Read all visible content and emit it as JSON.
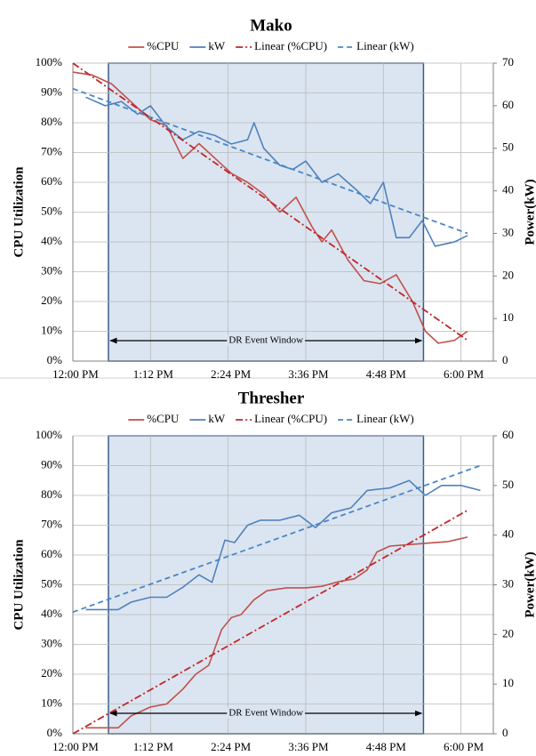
{
  "chart_data": [
    {
      "type": "line",
      "title": "Mako",
      "y_label": "CPU Utilization",
      "y2_label": "Power(kW)",
      "legend": "top",
      "grid": true,
      "xlim": [
        12,
        18.5
      ],
      "xticks": [
        {
          "value": 12,
          "label": "12:00 PM"
        },
        {
          "value": 13.2,
          "label": "1:12 PM"
        },
        {
          "value": 14.4,
          "label": "2:24 PM"
        },
        {
          "value": 15.6,
          "label": "3:36 PM"
        },
        {
          "value": 16.8,
          "label": "4:48 PM"
        },
        {
          "value": 18,
          "label": "6:00 PM"
        }
      ],
      "ylim": [
        0,
        100
      ],
      "yticks": [
        {
          "value": 0,
          "label": "0%"
        },
        {
          "value": 10,
          "label": "10%"
        },
        {
          "value": 20,
          "label": "20%"
        },
        {
          "value": 30,
          "label": "30%"
        },
        {
          "value": 40,
          "label": "40%"
        },
        {
          "value": 50,
          "label": "50%"
        },
        {
          "value": 60,
          "label": "60%"
        },
        {
          "value": 70,
          "label": "70%"
        },
        {
          "value": 80,
          "label": "80%"
        },
        {
          "value": 90,
          "label": "90%"
        },
        {
          "value": 100,
          "label": "100%"
        }
      ],
      "y2lim": [
        0,
        70
      ],
      "y2ticks": [
        0,
        10,
        20,
        30,
        40,
        50,
        60,
        70
      ],
      "event_window": {
        "label": "DR Event Window",
        "start": 12.55,
        "end": 17.42
      },
      "series": [
        {
          "name": "%CPU",
          "color": "#c0504d",
          "line_style": "solid",
          "x": [
            12,
            12.3,
            12.6,
            12.9,
            13.2,
            13.45,
            13.7,
            13.95,
            14.2,
            14.45,
            14.7,
            14.95,
            15.2,
            15.45,
            15.7,
            15.85,
            16,
            16.25,
            16.5,
            16.75,
            17,
            17.25,
            17.45,
            17.65,
            17.9,
            18.1
          ],
          "values": [
            97,
            96,
            93,
            87,
            81,
            79,
            68,
            73,
            68,
            63,
            60,
            56,
            50,
            55,
            45,
            40,
            44,
            34,
            27,
            26,
            29,
            20,
            10,
            6,
            7,
            10
          ]
        },
        {
          "name": "kW",
          "color": "#4f81bd",
          "line_style": "solid",
          "axis": "y2",
          "x": [
            12.2,
            12.5,
            12.75,
            13,
            13.2,
            13.45,
            13.7,
            13.95,
            14.2,
            14.45,
            14.7,
            14.8,
            14.95,
            15.2,
            15.4,
            15.6,
            15.85,
            16.1,
            16.4,
            16.6,
            16.8,
            17,
            17.2,
            17.4,
            17.6,
            17.9,
            18.1
          ],
          "values": [
            62,
            60,
            61,
            58,
            60,
            55,
            52,
            54,
            53,
            51,
            52,
            56,
            50,
            46,
            45,
            47,
            42,
            44,
            40,
            37,
            42,
            29,
            29,
            33,
            27,
            28,
            29.5
          ]
        },
        {
          "name": "Linear (%CPU)",
          "color": "#c0282a",
          "line_style": "dash-dot",
          "x": [
            12,
            18.1
          ],
          "values": [
            100,
            7
          ]
        },
        {
          "name": "Linear (kW)",
          "color": "#4a86c8",
          "line_style": "dash",
          "axis": "y2",
          "x": [
            12,
            18.1
          ],
          "values": [
            64,
            30
          ]
        }
      ]
    },
    {
      "type": "line",
      "title": "Thresher",
      "y_label": "CPU Utilization",
      "y2_label": "Power(kW)",
      "legend": "top",
      "grid": true,
      "xlim": [
        12,
        18.5
      ],
      "xticks": [
        {
          "value": 12,
          "label": "12:00 PM"
        },
        {
          "value": 13.2,
          "label": "1:12 PM"
        },
        {
          "value": 14.4,
          "label": "2:24 PM"
        },
        {
          "value": 15.6,
          "label": "3:36 PM"
        },
        {
          "value": 16.8,
          "label": "4:48 PM"
        },
        {
          "value": 18,
          "label": "6:00 PM"
        }
      ],
      "ylim": [
        0,
        100
      ],
      "yticks": [
        {
          "value": 0,
          "label": "0%"
        },
        {
          "value": 10,
          "label": "10%"
        },
        {
          "value": 20,
          "label": "20%"
        },
        {
          "value": 30,
          "label": "30%"
        },
        {
          "value": 40,
          "label": "40%"
        },
        {
          "value": 50,
          "label": "50%"
        },
        {
          "value": 60,
          "label": "60%"
        },
        {
          "value": 70,
          "label": "70%"
        },
        {
          "value": 80,
          "label": "80%"
        },
        {
          "value": 90,
          "label": "90%"
        },
        {
          "value": 100,
          "label": "100%"
        }
      ],
      "y2lim": [
        0,
        60
      ],
      "y2ticks": [
        0,
        10,
        20,
        30,
        40,
        50,
        60
      ],
      "event_window": {
        "label": "DR Event Window",
        "start": 12.55,
        "end": 17.42
      },
      "series": [
        {
          "name": "%CPU",
          "color": "#c0504d",
          "line_style": "solid",
          "x": [
            12.2,
            12.5,
            12.7,
            12.9,
            13.2,
            13.45,
            13.7,
            13.9,
            14.1,
            14.3,
            14.45,
            14.6,
            14.8,
            15,
            15.3,
            15.6,
            15.85,
            16.1,
            16.35,
            16.55,
            16.7,
            16.9,
            17.2,
            17.5,
            17.8,
            18.1
          ],
          "values": [
            2,
            2,
            2,
            6,
            9,
            10,
            15,
            20,
            23,
            35,
            39,
            40,
            45,
            48,
            49,
            49,
            49.5,
            51,
            52,
            55,
            61,
            63,
            63.5,
            64,
            64.5,
            66
          ]
        },
        {
          "name": "kW",
          "color": "#4f81bd",
          "line_style": "solid",
          "axis": "y2",
          "x": [
            12.2,
            12.5,
            12.7,
            12.9,
            13.2,
            13.45,
            13.7,
            13.95,
            14.15,
            14.35,
            14.5,
            14.7,
            14.9,
            15.2,
            15.5,
            15.75,
            16,
            16.3,
            16.55,
            16.9,
            17.2,
            17.45,
            17.7,
            18,
            18.3
          ],
          "values": [
            25,
            25,
            25,
            26.5,
            27.5,
            27.5,
            29.5,
            32,
            30.5,
            39,
            38.5,
            42,
            43,
            43,
            44,
            41.5,
            44.5,
            45.5,
            49,
            49.5,
            51,
            48,
            50,
            50,
            49
          ]
        },
        {
          "name": "Linear (%CPU)",
          "color": "#c0282a",
          "line_style": "dash-dot",
          "x": [
            12,
            18.1
          ],
          "values": [
            0,
            75
          ]
        },
        {
          "name": "Linear (kW)",
          "color": "#4a86c8",
          "line_style": "dash",
          "axis": "y2",
          "x": [
            12,
            18.3
          ],
          "values": [
            24.5,
            54
          ]
        }
      ]
    }
  ]
}
